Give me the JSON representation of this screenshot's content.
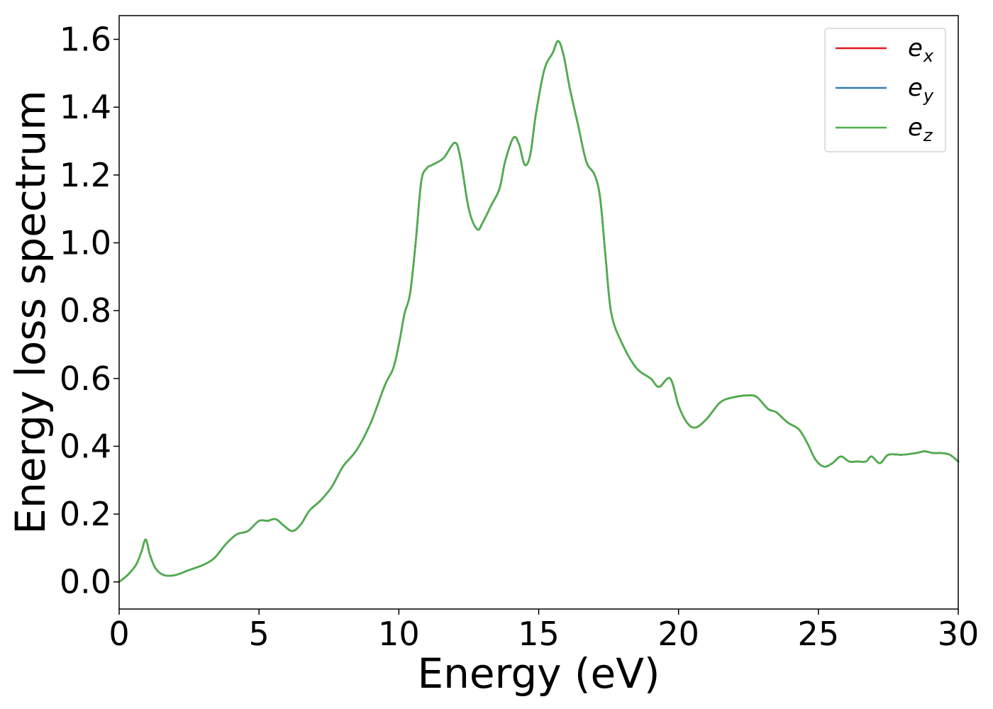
{
  "chart_data": {
    "type": "line",
    "title": "",
    "xlabel": "Energy (eV)",
    "ylabel": "Energy loss spectrum",
    "xlim": [
      0,
      30
    ],
    "ylim": [
      -0.08,
      1.67
    ],
    "xticks": [
      0,
      5,
      10,
      15,
      20,
      25,
      30
    ],
    "xtick_labels": [
      "0",
      "5",
      "10",
      "15",
      "20",
      "25",
      "30"
    ],
    "yticks": [
      0.0,
      0.2,
      0.4,
      0.6,
      0.8,
      1.0,
      1.2,
      1.4,
      1.6
    ],
    "ytick_labels": [
      "0.0",
      "0.2",
      "0.4",
      "0.6",
      "0.8",
      "1.0",
      "1.2",
      "1.4",
      "1.6"
    ],
    "grid": false,
    "legend_position": "top-right",
    "series": [
      {
        "name": "e_x",
        "label_base": "e",
        "label_sub": "x",
        "color": "#e41a1c",
        "x": [
          0,
          0.3,
          0.6,
          0.8,
          0.95,
          1.1,
          1.3,
          1.6,
          2.0,
          2.5,
          3.0,
          3.4,
          3.8,
          4.2,
          4.6,
          5.0,
          5.3,
          5.6,
          5.9,
          6.2,
          6.5,
          6.8,
          7.2,
          7.6,
          8.0,
          8.5,
          9.0,
          9.5,
          9.8,
          10.0,
          10.2,
          10.4,
          10.6,
          10.8,
          11.0,
          11.2,
          11.6,
          12.0,
          12.2,
          12.5,
          12.8,
          13.0,
          13.3,
          13.6,
          13.8,
          14.1,
          14.3,
          14.5,
          14.7,
          14.9,
          15.2,
          15.5,
          15.7,
          15.9,
          16.1,
          16.4,
          16.7,
          17.0,
          17.2,
          17.4,
          17.6,
          18.0,
          18.5,
          19.0,
          19.3,
          19.7,
          20.0,
          20.3,
          20.6,
          21.0,
          21.5,
          22.0,
          22.5,
          22.8,
          23.2,
          23.5,
          23.9,
          24.3,
          24.6,
          24.9,
          25.2,
          25.5,
          25.8,
          26.1,
          26.4,
          26.7,
          26.9,
          27.2,
          27.5,
          28.0,
          28.5,
          28.8,
          29.1,
          29.4,
          29.7,
          30.0
        ],
        "y": [
          0.0,
          0.02,
          0.05,
          0.09,
          0.125,
          0.08,
          0.04,
          0.02,
          0.02,
          0.035,
          0.05,
          0.07,
          0.11,
          0.14,
          0.15,
          0.18,
          0.18,
          0.185,
          0.165,
          0.15,
          0.17,
          0.21,
          0.24,
          0.28,
          0.34,
          0.39,
          0.47,
          0.58,
          0.63,
          0.7,
          0.79,
          0.85,
          1.0,
          1.18,
          1.22,
          1.23,
          1.25,
          1.295,
          1.25,
          1.1,
          1.04,
          1.06,
          1.11,
          1.16,
          1.24,
          1.31,
          1.29,
          1.23,
          1.26,
          1.38,
          1.51,
          1.56,
          1.595,
          1.55,
          1.46,
          1.35,
          1.24,
          1.2,
          1.13,
          0.95,
          0.79,
          0.7,
          0.63,
          0.6,
          0.575,
          0.6,
          0.52,
          0.47,
          0.455,
          0.48,
          0.53,
          0.545,
          0.55,
          0.545,
          0.51,
          0.5,
          0.47,
          0.45,
          0.41,
          0.36,
          0.34,
          0.35,
          0.37,
          0.355,
          0.355,
          0.355,
          0.37,
          0.35,
          0.375,
          0.375,
          0.38,
          0.385,
          0.38,
          0.38,
          0.375,
          0.355
        ]
      },
      {
        "name": "e_y",
        "label_base": "e",
        "label_sub": "y",
        "color": "#377eb8",
        "x": [
          0,
          0.3,
          0.6,
          0.8,
          0.95,
          1.1,
          1.3,
          1.6,
          2.0,
          2.5,
          3.0,
          3.4,
          3.8,
          4.2,
          4.6,
          5.0,
          5.3,
          5.6,
          5.9,
          6.2,
          6.5,
          6.8,
          7.2,
          7.6,
          8.0,
          8.5,
          9.0,
          9.5,
          9.8,
          10.0,
          10.2,
          10.4,
          10.6,
          10.8,
          11.0,
          11.2,
          11.6,
          12.0,
          12.2,
          12.5,
          12.8,
          13.0,
          13.3,
          13.6,
          13.8,
          14.1,
          14.3,
          14.5,
          14.7,
          14.9,
          15.2,
          15.5,
          15.7,
          15.9,
          16.1,
          16.4,
          16.7,
          17.0,
          17.2,
          17.4,
          17.6,
          18.0,
          18.5,
          19.0,
          19.3,
          19.7,
          20.0,
          20.3,
          20.6,
          21.0,
          21.5,
          22.0,
          22.5,
          22.8,
          23.2,
          23.5,
          23.9,
          24.3,
          24.6,
          24.9,
          25.2,
          25.5,
          25.8,
          26.1,
          26.4,
          26.7,
          26.9,
          27.2,
          27.5,
          28.0,
          28.5,
          28.8,
          29.1,
          29.4,
          29.7,
          30.0
        ],
        "y": [
          0.0,
          0.02,
          0.05,
          0.09,
          0.125,
          0.08,
          0.04,
          0.02,
          0.02,
          0.035,
          0.05,
          0.07,
          0.11,
          0.14,
          0.15,
          0.18,
          0.18,
          0.185,
          0.165,
          0.15,
          0.17,
          0.21,
          0.24,
          0.28,
          0.34,
          0.39,
          0.47,
          0.58,
          0.63,
          0.7,
          0.79,
          0.85,
          1.0,
          1.18,
          1.22,
          1.23,
          1.25,
          1.295,
          1.25,
          1.1,
          1.04,
          1.06,
          1.11,
          1.16,
          1.24,
          1.31,
          1.29,
          1.23,
          1.26,
          1.38,
          1.51,
          1.56,
          1.595,
          1.55,
          1.46,
          1.35,
          1.24,
          1.2,
          1.13,
          0.95,
          0.79,
          0.7,
          0.63,
          0.6,
          0.575,
          0.6,
          0.52,
          0.47,
          0.455,
          0.48,
          0.53,
          0.545,
          0.55,
          0.545,
          0.51,
          0.5,
          0.47,
          0.45,
          0.41,
          0.36,
          0.34,
          0.35,
          0.37,
          0.355,
          0.355,
          0.355,
          0.37,
          0.35,
          0.375,
          0.375,
          0.38,
          0.385,
          0.38,
          0.38,
          0.375,
          0.355
        ]
      },
      {
        "name": "e_z",
        "label_base": "e",
        "label_sub": "z",
        "color": "#4daf4a",
        "x": [
          0,
          0.3,
          0.6,
          0.8,
          0.95,
          1.1,
          1.3,
          1.6,
          2.0,
          2.5,
          3.0,
          3.4,
          3.8,
          4.2,
          4.6,
          5.0,
          5.3,
          5.6,
          5.9,
          6.2,
          6.5,
          6.8,
          7.2,
          7.6,
          8.0,
          8.5,
          9.0,
          9.5,
          9.8,
          10.0,
          10.2,
          10.4,
          10.6,
          10.8,
          11.0,
          11.2,
          11.6,
          12.0,
          12.2,
          12.5,
          12.8,
          13.0,
          13.3,
          13.6,
          13.8,
          14.1,
          14.3,
          14.5,
          14.7,
          14.9,
          15.2,
          15.5,
          15.7,
          15.9,
          16.1,
          16.4,
          16.7,
          17.0,
          17.2,
          17.4,
          17.6,
          18.0,
          18.5,
          19.0,
          19.3,
          19.7,
          20.0,
          20.3,
          20.6,
          21.0,
          21.5,
          22.0,
          22.5,
          22.8,
          23.2,
          23.5,
          23.9,
          24.3,
          24.6,
          24.9,
          25.2,
          25.5,
          25.8,
          26.1,
          26.4,
          26.7,
          26.9,
          27.2,
          27.5,
          28.0,
          28.5,
          28.8,
          29.1,
          29.4,
          29.7,
          30.0
        ],
        "y": [
          0.0,
          0.02,
          0.05,
          0.09,
          0.125,
          0.08,
          0.04,
          0.02,
          0.02,
          0.035,
          0.05,
          0.07,
          0.11,
          0.14,
          0.15,
          0.18,
          0.18,
          0.185,
          0.165,
          0.15,
          0.17,
          0.21,
          0.24,
          0.28,
          0.34,
          0.39,
          0.47,
          0.58,
          0.63,
          0.7,
          0.79,
          0.85,
          1.0,
          1.18,
          1.22,
          1.23,
          1.25,
          1.295,
          1.25,
          1.1,
          1.04,
          1.06,
          1.11,
          1.16,
          1.24,
          1.31,
          1.29,
          1.23,
          1.26,
          1.38,
          1.51,
          1.56,
          1.595,
          1.55,
          1.46,
          1.35,
          1.24,
          1.2,
          1.13,
          0.95,
          0.79,
          0.7,
          0.63,
          0.6,
          0.575,
          0.6,
          0.52,
          0.47,
          0.455,
          0.48,
          0.53,
          0.545,
          0.55,
          0.545,
          0.51,
          0.5,
          0.47,
          0.45,
          0.41,
          0.36,
          0.34,
          0.35,
          0.37,
          0.355,
          0.355,
          0.355,
          0.37,
          0.35,
          0.375,
          0.375,
          0.38,
          0.385,
          0.38,
          0.38,
          0.375,
          0.355
        ]
      }
    ]
  }
}
